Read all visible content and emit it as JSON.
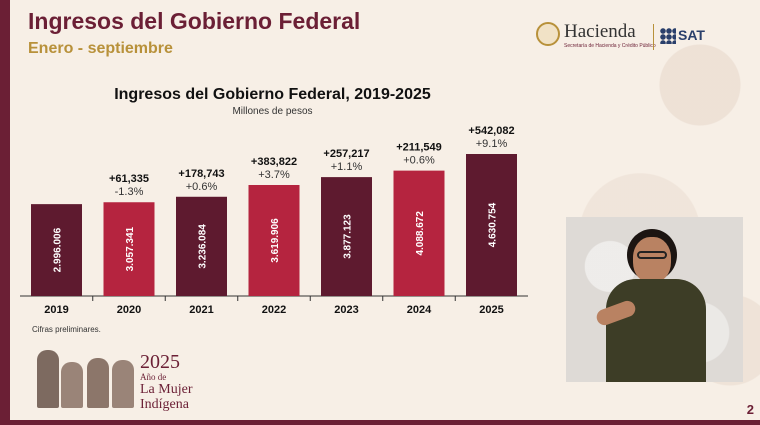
{
  "header": {
    "title": "Ingresos del Gobierno Federal",
    "subtitle": "Enero - septiembre"
  },
  "logos": {
    "hacienda": "Hacienda",
    "hacienda_sub": "Secretaría de Hacienda y Crédito Público",
    "sat": "SAT"
  },
  "chart_data": {
    "type": "bar",
    "title": "Ingresos del Gobierno Federal, 2019-2025",
    "subtitle": "Millones de pesos",
    "categories": [
      "2019",
      "2020",
      "2021",
      "2022",
      "2023",
      "2024",
      "2025"
    ],
    "values": [
      2996006,
      3057341,
      3236084,
      3619906,
      3877123,
      4088672,
      4630754
    ],
    "value_labels": [
      "2.996.006",
      "3.057.341",
      "3.236.084",
      "3.619.906",
      "3.877.123",
      "4.088.672",
      "4.630.754"
    ],
    "change_abs": [
      "",
      "+61,335",
      "+178,743",
      "+383,822",
      "+257,217",
      "+211,549",
      "+542,082"
    ],
    "change_pct": [
      "",
      "-1.3%",
      "+0.6%",
      "+3.7%",
      "+1.1%",
      "+0.6%",
      "+9.1%"
    ],
    "colors": [
      "#5e1a2f",
      "#b5243f",
      "#5e1a2f",
      "#b5243f",
      "#5e1a2f",
      "#b5243f",
      "#5e1a2f"
    ],
    "grid": false
  },
  "footer": {
    "note": "Cifras preliminares.",
    "page_number": "2"
  },
  "year_badge": {
    "year": "2025",
    "line1": "Año de",
    "line2": "La Mujer",
    "line3": "Indígena"
  },
  "colors": {
    "primary": "#6b1f35",
    "accent": "#b8913a",
    "background": "#f7efe6"
  }
}
